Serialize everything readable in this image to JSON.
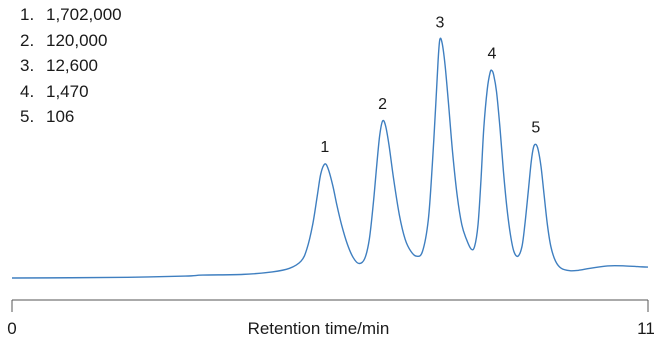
{
  "chart_data": {
    "type": "line",
    "title": "",
    "xlabel": "Retention time/min",
    "ylabel": "",
    "xlim": [
      0,
      11
    ],
    "x_tick_labels": [
      "0",
      "11"
    ],
    "ylim": [
      0,
      100
    ],
    "grid": false,
    "line_color": "#3f7fc0",
    "legend": {
      "placement": "top-left",
      "entries": [
        {
          "number": "1.",
          "label": "1,702,000"
        },
        {
          "number": "2.",
          "label": "120,000"
        },
        {
          "number": "3.",
          "label": "12,600"
        },
        {
          "number": "4.",
          "label": "1,470"
        },
        {
          "number": "5.",
          "label": "106"
        }
      ]
    },
    "peaks": [
      {
        "label": "1",
        "time": 5.41,
        "height": 47.1
      },
      {
        "label": "2",
        "time": 6.41,
        "height": 64.9
      },
      {
        "label": "3",
        "time": 7.4,
        "height": 98.6
      },
      {
        "label": "4",
        "time": 8.3,
        "height": 85.7
      },
      {
        "label": "5",
        "time": 9.06,
        "height": 55.2
      }
    ],
    "series": [
      {
        "x": [
          0.0,
          1.0,
          2.0,
          3.0,
          3.3,
          4.0,
          4.5,
          4.8,
          5.0,
          5.1,
          5.2,
          5.28,
          5.34,
          5.41,
          5.47,
          5.55,
          5.62,
          5.7,
          5.8,
          5.9,
          6.0,
          6.1,
          6.18,
          6.25,
          6.31,
          6.36,
          6.41,
          6.46,
          6.52,
          6.6,
          6.7,
          6.8,
          6.9,
          7.0,
          7.1,
          7.2,
          7.27,
          7.33,
          7.37,
          7.4,
          7.44,
          7.49,
          7.55,
          7.62,
          7.7,
          7.78,
          7.86,
          7.94,
          8.0,
          8.06,
          8.11,
          8.16,
          8.22,
          8.27,
          8.3,
          8.33,
          8.38,
          8.44,
          8.5,
          8.56,
          8.62,
          8.68,
          8.75,
          8.82,
          8.87,
          8.93,
          8.98,
          9.02,
          9.06,
          9.1,
          9.15,
          9.2,
          9.26,
          9.32,
          9.4,
          9.5,
          9.65,
          9.8,
          10.0,
          10.3,
          10.6,
          10.9,
          11.0
        ],
        "y": [
          0.0,
          0.1,
          0.3,
          0.8,
          1.2,
          1.5,
          2.5,
          4.0,
          7.0,
          12.0,
          22.0,
          34.0,
          43.0,
          47.1,
          45.0,
          38.0,
          30.0,
          22.0,
          14.0,
          8.5,
          6.0,
          8.0,
          16.0,
          31.0,
          47.0,
          59.0,
          64.9,
          63.0,
          55.0,
          41.0,
          26.0,
          16.0,
          11.0,
          9.0,
          11.0,
          24.0,
          47.0,
          72.0,
          90.0,
          98.6,
          97.0,
          88.0,
          72.0,
          52.0,
          34.0,
          22.0,
          16.0,
          12.0,
          13.0,
          22.0,
          40.0,
          62.0,
          78.0,
          85.0,
          85.7,
          84.0,
          77.0,
          62.0,
          44.0,
          29.0,
          18.0,
          11.0,
          9.0,
          13.0,
          22.0,
          36.0,
          48.0,
          54.0,
          55.2,
          53.0,
          46.0,
          35.0,
          22.0,
          13.0,
          7.0,
          4.0,
          3.0,
          3.2,
          4.0,
          5.0,
          5.0,
          4.6,
          4.5
        ]
      }
    ]
  }
}
